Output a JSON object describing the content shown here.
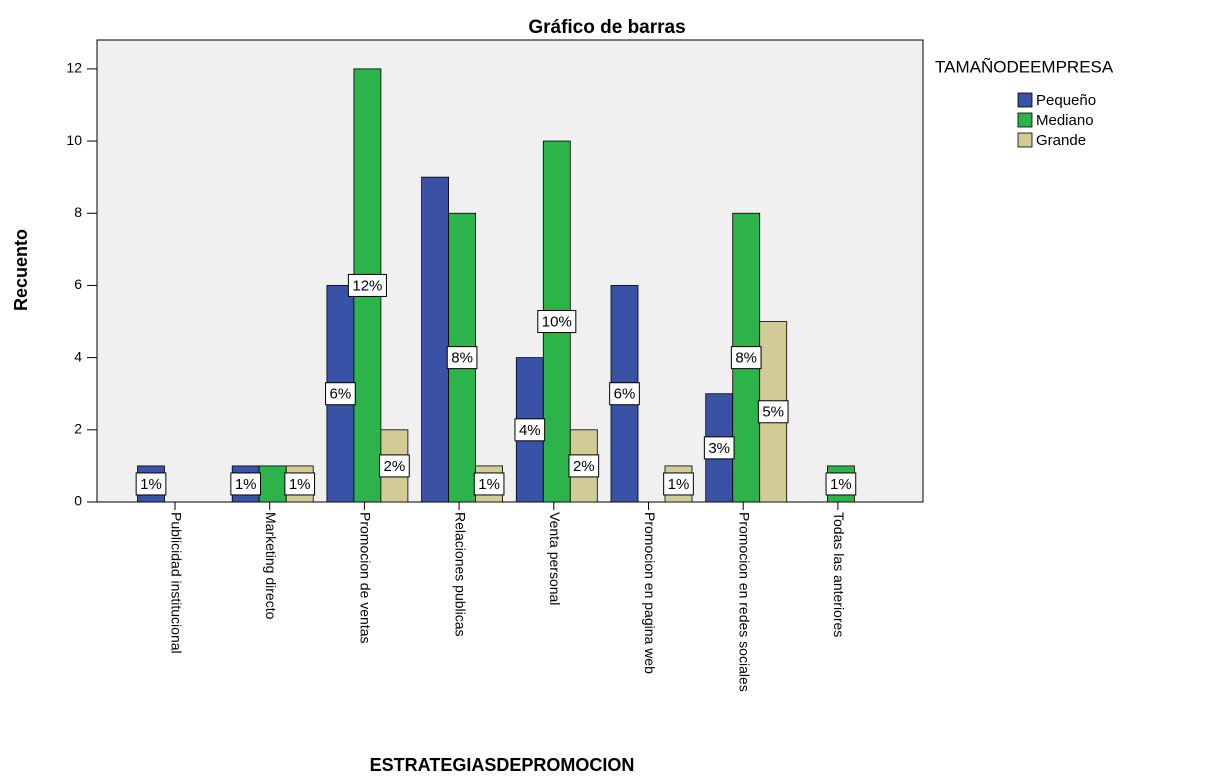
{
  "chart_data": {
    "type": "bar",
    "title": "Gráfico de barras",
    "x_label": "ESTRATEGIASDEPROMOCION",
    "y_label": "Recuento",
    "legend_title": "TAMAÑODEEMPRESA",
    "legend_position": "right",
    "categories": [
      "Publicidad institucional",
      "Marketing directo",
      "Promocion de ventas",
      "Relaciones publicas",
      "Venta personal",
      "Promocion en pagina web",
      "Promocion en redes sociales",
      "Todas las anteriores"
    ],
    "series": [
      {
        "name": "Pequeño",
        "color": "#3a52a6",
        "values": [
          1,
          1,
          6,
          9,
          4,
          6,
          3,
          0
        ],
        "value_labels": [
          "1%",
          "1%",
          "6%",
          null,
          "4%",
          "6%",
          "3%",
          null
        ]
      },
      {
        "name": "Mediano",
        "color": "#2cb34a",
        "values": [
          0,
          1,
          12,
          8,
          10,
          0,
          8,
          1
        ],
        "value_labels": [
          null,
          null,
          "12%",
          "8%",
          "10%",
          null,
          "8%",
          "1%"
        ]
      },
      {
        "name": "Grande",
        "color": "#d3cb96",
        "values": [
          0,
          1,
          2,
          1,
          2,
          1,
          5,
          0
        ],
        "value_labels": [
          null,
          "1%",
          "2%",
          "1%",
          "2%",
          "1%",
          "5%",
          null
        ]
      }
    ],
    "ylim": [
      0,
      12.8
    ],
    "yticks": [
      0,
      2,
      4,
      6,
      8,
      10,
      12
    ],
    "grid": false
  }
}
